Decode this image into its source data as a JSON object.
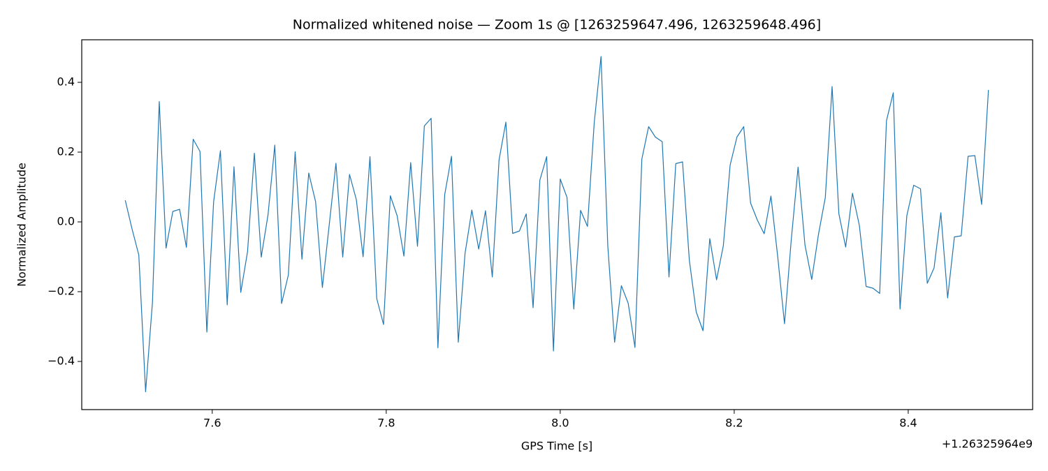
{
  "chart_data": {
    "type": "line",
    "title": "Normalized whitened noise — Zoom 1s @ [1263259647.496, 1263259648.496]",
    "xlabel": "GPS Time [s]",
    "ylabel": "Normalized Amplitude",
    "x_offset_label": "+1.26325964e9",
    "x": [
      7.5,
      7.5078,
      7.5156,
      7.5234,
      7.5313,
      7.5391,
      7.5469,
      7.5547,
      7.5625,
      7.5703,
      7.5781,
      7.5859,
      7.5938,
      7.6016,
      7.6094,
      7.6172,
      7.625,
      7.6328,
      7.6406,
      7.6484,
      7.6563,
      7.6641,
      7.6719,
      7.6797,
      7.6875,
      7.6953,
      7.7031,
      7.7109,
      7.7188,
      7.7266,
      7.7344,
      7.7422,
      7.75,
      7.7578,
      7.7656,
      7.7734,
      7.7813,
      7.7891,
      7.7969,
      7.8047,
      7.8125,
      7.8203,
      7.8281,
      7.8359,
      7.8438,
      7.8516,
      7.8594,
      7.8672,
      7.875,
      7.8828,
      7.8906,
      7.8984,
      7.9063,
      7.9141,
      7.9219,
      7.9297,
      7.9375,
      7.9453,
      7.9531,
      7.9609,
      7.9688,
      7.9766,
      7.9844,
      7.9922,
      8.0,
      8.0078,
      8.0156,
      8.0234,
      8.0313,
      8.0391,
      8.0469,
      8.0547,
      8.0625,
      8.0703,
      8.0781,
      8.0859,
      8.0938,
      8.1016,
      8.1094,
      8.1172,
      8.125,
      8.1328,
      8.1406,
      8.1484,
      8.1563,
      8.1641,
      8.1719,
      8.1797,
      8.1875,
      8.1953,
      8.2031,
      8.2109,
      8.2188,
      8.2266,
      8.2344,
      8.2422,
      8.25,
      8.2578,
      8.2656,
      8.2734,
      8.2813,
      8.2891,
      8.2969,
      8.3047,
      8.3125,
      8.3203,
      8.3281,
      8.3359,
      8.3438,
      8.3516,
      8.3594,
      8.3672,
      8.375,
      8.3828,
      8.3906,
      8.3984,
      8.4063,
      8.4141,
      8.4219,
      8.4297,
      8.4375,
      8.4453,
      8.4531,
      8.4609,
      8.4688,
      8.4766,
      8.4844,
      8.4922
    ],
    "series": [
      {
        "name": "whitened",
        "color": "#1f77b4",
        "values": [
          0.062,
          -0.02,
          -0.095,
          -0.487,
          -0.23,
          0.345,
          -0.075,
          0.03,
          0.036,
          -0.073,
          0.237,
          0.202,
          -0.316,
          0.058,
          0.204,
          -0.238,
          0.158,
          -0.202,
          -0.085,
          0.197,
          -0.101,
          0.02,
          0.22,
          -0.234,
          -0.152,
          0.201,
          -0.107,
          0.14,
          0.058,
          -0.188,
          -0.01,
          0.168,
          -0.101,
          0.136,
          0.064,
          -0.1,
          0.187,
          -0.22,
          -0.294,
          0.075,
          0.018,
          -0.098,
          0.17,
          -0.07,
          0.275,
          0.297,
          -0.361,
          0.078,
          0.188,
          -0.345,
          -0.09,
          0.034,
          -0.078,
          0.032,
          -0.158,
          0.178,
          0.286,
          -0.033,
          -0.026,
          0.023,
          -0.246,
          0.12,
          0.187,
          -0.37,
          0.123,
          0.07,
          -0.25,
          0.033,
          -0.013,
          0.285,
          0.474,
          -0.07,
          -0.345,
          -0.183,
          -0.233,
          -0.36,
          0.18,
          0.273,
          0.243,
          0.23,
          -0.158,
          0.167,
          0.172,
          -0.11,
          -0.258,
          -0.312,
          -0.048,
          -0.166,
          -0.068,
          0.163,
          0.243,
          0.273,
          0.054,
          0.005,
          -0.034,
          0.074,
          -0.1,
          -0.292,
          -0.05,
          0.157,
          -0.066,
          -0.165,
          -0.035,
          0.07,
          0.388,
          0.023,
          -0.072,
          0.082,
          -0.01,
          -0.185,
          -0.19,
          -0.205,
          0.29,
          0.37,
          -0.25,
          0.018,
          0.105,
          0.095,
          -0.176,
          -0.132,
          0.026,
          -0.218,
          -0.043,
          -0.04,
          0.188,
          0.19,
          0.05,
          0.378
        ]
      }
    ],
    "xlim": [
      7.45,
      8.543
    ],
    "ylim": [
      -0.538,
      0.522
    ],
    "xticks": [
      7.6,
      7.8,
      {
        "value": 8.0,
        "label": "8.0"
      },
      8.2,
      8.4
    ],
    "yticks": [
      {
        "value": -0.4,
        "label": "−0.4"
      },
      {
        "value": -0.2,
        "label": "−0.2"
      },
      {
        "value": 0.0,
        "label": "0.0"
      },
      0.2,
      0.4
    ],
    "grid": false
  }
}
